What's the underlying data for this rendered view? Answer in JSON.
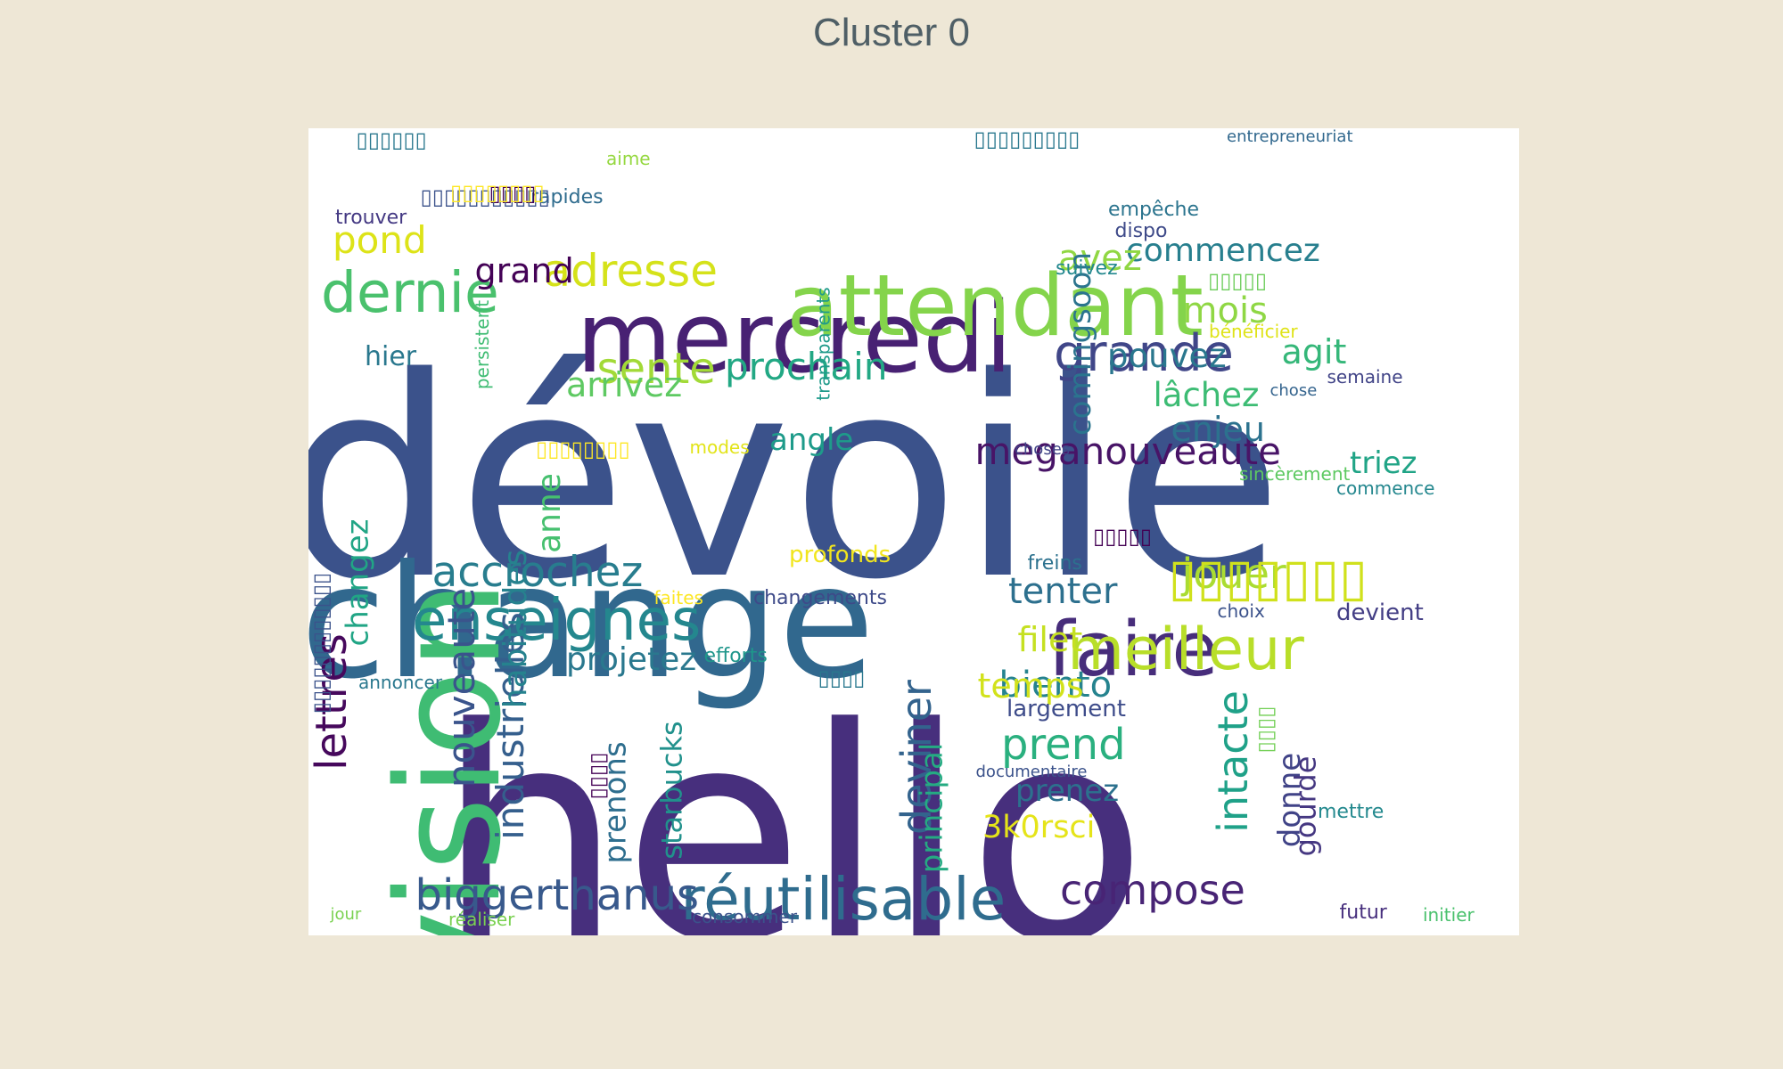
{
  "title": "Cluster 0",
  "chart_data": {
    "type": "wordcloud",
    "title": "Cluster 0",
    "words": [
      {
        "text": "dévoile",
        "weight": 100,
        "color": "#3B528B"
      },
      {
        "text": "hello",
        "weight": 98,
        "color": "#472F7D"
      },
      {
        "text": "change",
        "weight": 64,
        "color": "#31688E"
      },
      {
        "text": "vision",
        "weight": 50,
        "color": "#3FBC73"
      },
      {
        "text": "mercredi",
        "weight": 33,
        "color": "#482173"
      },
      {
        "text": "attendant",
        "weight": 31,
        "color": "#84D44B"
      },
      {
        "text": "faire",
        "weight": 28,
        "color": "#472D7B"
      },
      {
        "text": "réutilisable",
        "weight": 23,
        "color": "#2F6C8E"
      },
      {
        "text": "enseignes",
        "weight": 22,
        "color": "#24878E"
      },
      {
        "text": "meilleur",
        "weight": 21,
        "color": "#B8DE29"
      },
      {
        "text": "dernie",
        "weight": 20,
        "color": "#4AC16D"
      },
      {
        "text": "nouveaute",
        "weight": 18,
        "color": "#3A548C"
      },
      {
        "text": "industrielles",
        "weight": 16,
        "color": "#355F8D"
      },
      {
        "text": "biggerthanus",
        "weight": 16,
        "color": "#38598C"
      },
      {
        "text": "grande",
        "weight": 15,
        "color": "#404688"
      },
      {
        "text": "adresse",
        "weight": 15,
        "color": "#D5E21A"
      },
      {
        "text": "accrochez",
        "weight": 15,
        "color": "#287D8E"
      },
      {
        "text": "lettres",
        "weight": 14,
        "color": "#46085C"
      },
      {
        "text": "compose",
        "weight": 14,
        "color": "#482475"
      },
      {
        "text": "intacte",
        "weight": 14,
        "color": "#1FA188"
      },
      {
        "text": "deviner",
        "weight": 14,
        "color": "#33638D"
      },
      {
        "text": "sente",
        "weight": 13,
        "color": "#A2DA37"
      },
      {
        "text": "prend",
        "weight": 13,
        "color": "#2AB07F"
      },
      {
        "text": "jouer",
        "weight": 13,
        "color": "#AADC32"
      },
      {
        "text": "meganouveaute",
        "weight": 12,
        "color": "#481467"
      },
      {
        "text": "prochain",
        "weight": 12,
        "color": "#22A884"
      },
      {
        "text": "commencez",
        "weight": 11,
        "color": "#277F8E"
      },
      {
        "text": "habitudes",
        "weight": 11,
        "color": "#26828E"
      },
      {
        "text": "arrivez",
        "weight": 11,
        "color": "#5EC962"
      },
      {
        "text": "avez",
        "weight": 11,
        "color": "#90D743"
      },
      {
        "text": "enjeu",
        "weight": 11,
        "color": "#2C728E"
      },
      {
        "text": "tenter",
        "weight": 11,
        "color": "#2D708E"
      },
      {
        "text": "pond",
        "weight": 11,
        "color": "#DDE318"
      },
      {
        "text": "mois",
        "weight": 11,
        "color": "#8FD744"
      },
      {
        "text": "pouvez",
        "weight": 11,
        "color": "#2A778E"
      },
      {
        "text": "agit",
        "weight": 11,
        "color": "#35B779"
      },
      {
        "text": "lâchez",
        "weight": 11,
        "color": "#3DBC74"
      },
      {
        "text": "biento",
        "weight": 11,
        "color": "#25838E"
      },
      {
        "text": "comingsoon",
        "weight": 11,
        "color": "#2B748E"
      },
      {
        "text": "grand",
        "weight": 10,
        "color": "#440256"
      },
      {
        "text": "angle",
        "weight": 10,
        "color": "#1E9B8A"
      },
      {
        "text": "anne",
        "weight": 10,
        "color": "#46C06F"
      },
      {
        "text": "projetez",
        "weight": 10,
        "color": "#2A788E"
      },
      {
        "text": "starbucks",
        "weight": 10,
        "color": "#21918C"
      },
      {
        "text": "prenons",
        "weight": 10,
        "color": "#2E6E8E"
      },
      {
        "text": "changez",
        "weight": 10,
        "color": "#21A585"
      },
      {
        "text": "donne",
        "weight": 10,
        "color": "#404387"
      },
      {
        "text": "principal",
        "weight": 10,
        "color": "#25AB82"
      },
      {
        "text": "filet",
        "weight": 10,
        "color": "#C5E021"
      },
      {
        "text": "temps",
        "weight": 10,
        "color": "#D2E21B"
      },
      {
        "text": "prenez",
        "weight": 10,
        "color": "#2C718E"
      },
      {
        "text": "3k0rsci",
        "weight": 10,
        "color": "#E5E419"
      },
      {
        "text": "gourde",
        "weight": 10,
        "color": "#453781"
      },
      {
        "text": "triez",
        "weight": 9,
        "color": "#20A486"
      },
      {
        "text": "profonds",
        "weight": 8,
        "color": "#F1E51D"
      },
      {
        "text": "hier",
        "weight": 8,
        "color": "#2A788E"
      },
      {
        "text": "largement",
        "weight": 8,
        "color": "#3E4C8A"
      },
      {
        "text": "devient",
        "weight": 8,
        "color": "#433E85"
      },
      {
        "text": "rapides",
        "weight": 7,
        "color": "#2F6C8E"
      },
      {
        "text": "trouver",
        "weight": 7,
        "color": "#443983"
      },
      {
        "text": "empêche",
        "weight": 7,
        "color": "#2B748E"
      },
      {
        "text": "dispo",
        "weight": 7,
        "color": "#3E4A89"
      },
      {
        "text": "suivez",
        "weight": 7,
        "color": "#23888E"
      },
      {
        "text": "bénéficier",
        "weight": 7,
        "color": "#DFE318"
      },
      {
        "text": "semaine",
        "weight": 7,
        "color": "#414487"
      },
      {
        "text": "persistent",
        "weight": 7,
        "color": "#3FBC73"
      },
      {
        "text": "transparents",
        "weight": 7,
        "color": "#1F9A8A"
      },
      {
        "text": "modes",
        "weight": 7,
        "color": "#E2E418"
      },
      {
        "text": "sincèrement",
        "weight": 7,
        "color": "#5EC962"
      },
      {
        "text": "commence",
        "weight": 7,
        "color": "#24878E"
      },
      {
        "text": "freins",
        "weight": 7,
        "color": "#2C718E"
      },
      {
        "text": "faites",
        "weight": 7,
        "color": "#FDE725"
      },
      {
        "text": "changements",
        "weight": 7,
        "color": "#3E4A89"
      },
      {
        "text": "choix",
        "weight": 7,
        "color": "#3B528B"
      },
      {
        "text": "efforts",
        "weight": 7,
        "color": "#1F968B"
      },
      {
        "text": "annoncer",
        "weight": 7,
        "color": "#2A788E"
      },
      {
        "text": "documentaire",
        "weight": 6,
        "color": "#3B528B"
      },
      {
        "text": "mettre",
        "weight": 7,
        "color": "#23898E"
      },
      {
        "text": "aime",
        "weight": 6,
        "color": "#95D840"
      },
      {
        "text": "entrepreneuriat",
        "weight": 6,
        "color": "#31688E"
      },
      {
        "text": "chose",
        "weight": 6,
        "color": "#33638D"
      },
      {
        "text": "choses",
        "weight": 6,
        "color": "#414487"
      },
      {
        "text": "jour",
        "weight": 6,
        "color": "#7AD151"
      },
      {
        "text": "réaliser",
        "weight": 7,
        "color": "#7AD151"
      },
      {
        "text": "consommer",
        "weight": 7,
        "color": "#3B528B"
      },
      {
        "text": "futur",
        "weight": 7,
        "color": "#472F7D"
      },
      {
        "text": "initier",
        "weight": 7,
        "color": "#4AC16D"
      },
      {
        "text": "▯▯▯▯▯▯▯",
        "weight": 22,
        "color": "#D0E11C"
      },
      {
        "text": "▯▯▯▯▯▯",
        "weight": 8,
        "color": "#2A788E"
      },
      {
        "text": "▯▯▯▯▯▯▯▯▯",
        "weight": 8,
        "color": "#2A788E"
      },
      {
        "text": "▯▯▯▯▯▯▯▯▯▯▯▯",
        "weight": 8,
        "color": "#3B528B"
      },
      {
        "text": "▯▯▯▯",
        "weight": 8,
        "color": "#440154"
      },
      {
        "text": "▯▯▯▯▯",
        "weight": 8,
        "color": "#6CCD5A"
      },
      {
        "text": "▯▯▯▯▯",
        "weight": 8,
        "color": "#440154"
      },
      {
        "text": "▯▯▯▯▯▯▯▯",
        "weight": 8,
        "color": "#FDE725"
      },
      {
        "text": "▯▯▯▯",
        "weight": 8,
        "color": "#73D056"
      },
      {
        "text": "▯▯▯▯",
        "weight": 8,
        "color": "#2A788E"
      },
      {
        "text": "▯▯▯▯▯▯▯▯▯▯▯",
        "weight": 8,
        "color": "#3B528B"
      },
      {
        "text": "▯▯▯▯",
        "weight": 8,
        "color": "#440154"
      },
      {
        "text": "▯▯▯▯▯▯▯▯",
        "weight": 8,
        "color": "#FDE725"
      }
    ]
  }
}
